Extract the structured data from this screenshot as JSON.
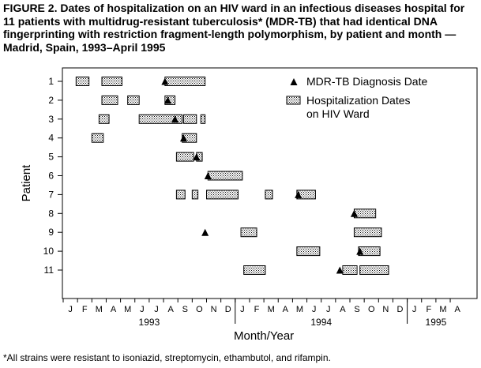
{
  "figure": {
    "title": "FIGURE 2. Dates of hospitalization on an HIV ward in an infectious diseases hospital for 11 patients with multidrug-resistant tuberculosis* (MDR-TB) that had identical DNA fingerprinting with restriction fragment-length polymorphism, by patient and month — Madrid, Spain, 1993–April 1995",
    "footnote": "*All strains were resistant to isoniazid, streptomycin, ethambutol, and rifampin."
  },
  "chart_data": {
    "type": "timeline",
    "xlabel": "Month/Year",
    "ylabel": "Patient",
    "x_unit": "month index (0 = start of January 1993)",
    "xlim": [
      0,
      28
    ],
    "month_tick_labels": [
      "J",
      "F",
      "M",
      "A",
      "M",
      "J",
      "J",
      "A",
      "S",
      "O",
      "N",
      "D",
      "J",
      "F",
      "M",
      "A",
      "M",
      "J",
      "J",
      "A",
      "S",
      "O",
      "N",
      "D",
      "J",
      "F",
      "M",
      "A"
    ],
    "year_labels": [
      {
        "label": "1993",
        "center": 6
      },
      {
        "label": "1994",
        "center": 18
      },
      {
        "label": "1995",
        "center": 26
      }
    ],
    "year_dividers": [
      12,
      24
    ],
    "patients": [
      "1",
      "2",
      "3",
      "4",
      "5",
      "6",
      "7",
      "8",
      "9",
      "10",
      "11"
    ],
    "legend": {
      "diagnosis_label": "MDR-TB Diagnosis Date",
      "hospitalization_label_line1": "Hospitalization Dates",
      "hospitalization_label_line2": "on HIV Ward"
    },
    "hospitalizations": [
      {
        "patient": "1",
        "start": 0.9,
        "end": 1.8
      },
      {
        "patient": "1",
        "start": 2.7,
        "end": 4.1
      },
      {
        "patient": "1",
        "start": 7.1,
        "end": 9.9
      },
      {
        "patient": "2",
        "start": 2.7,
        "end": 3.8
      },
      {
        "patient": "2",
        "start": 4.5,
        "end": 5.3
      },
      {
        "patient": "2",
        "start": 7.1,
        "end": 7.8
      },
      {
        "patient": "3",
        "start": 2.5,
        "end": 3.2
      },
      {
        "patient": "3",
        "start": 5.3,
        "end": 8.3
      },
      {
        "patient": "3",
        "start": 8.4,
        "end": 9.3
      },
      {
        "patient": "3",
        "start": 9.6,
        "end": 9.9
      },
      {
        "patient": "4",
        "start": 2.0,
        "end": 2.8
      },
      {
        "patient": "4",
        "start": 8.3,
        "end": 9.3
      },
      {
        "patient": "5",
        "start": 7.9,
        "end": 9.1
      },
      {
        "patient": "5",
        "start": 9.3,
        "end": 9.7
      },
      {
        "patient": "6",
        "start": 10.1,
        "end": 12.5
      },
      {
        "patient": "7",
        "start": 7.9,
        "end": 8.5
      },
      {
        "patient": "7",
        "start": 9.0,
        "end": 9.4
      },
      {
        "patient": "7",
        "start": 10.0,
        "end": 12.2
      },
      {
        "patient": "7",
        "start": 14.1,
        "end": 14.6
      },
      {
        "patient": "7",
        "start": 16.3,
        "end": 17.6
      },
      {
        "patient": "8",
        "start": 20.3,
        "end": 21.8
      },
      {
        "patient": "9",
        "start": 12.4,
        "end": 13.5
      },
      {
        "patient": "9",
        "start": 20.3,
        "end": 22.2
      },
      {
        "patient": "10",
        "start": 16.3,
        "end": 17.9
      },
      {
        "patient": "10",
        "start": 20.6,
        "end": 22.1
      },
      {
        "patient": "11",
        "start": 12.6,
        "end": 14.1
      },
      {
        "patient": "11",
        "start": 19.5,
        "end": 20.5
      },
      {
        "patient": "11",
        "start": 20.7,
        "end": 22.7
      }
    ],
    "diagnoses": [
      {
        "patient": "1",
        "month": 7.1
      },
      {
        "patient": "2",
        "month": 7.3
      },
      {
        "patient": "3",
        "month": 7.8
      },
      {
        "patient": "4",
        "month": 8.4
      },
      {
        "patient": "5",
        "month": 9.3
      },
      {
        "patient": "6",
        "month": 10.1
      },
      {
        "patient": "7",
        "month": 16.4
      },
      {
        "patient": "8",
        "month": 20.3
      },
      {
        "patient": "9",
        "month": 9.9
      },
      {
        "patient": "10",
        "month": 20.7
      },
      {
        "patient": "11",
        "month": 19.3
      }
    ]
  }
}
